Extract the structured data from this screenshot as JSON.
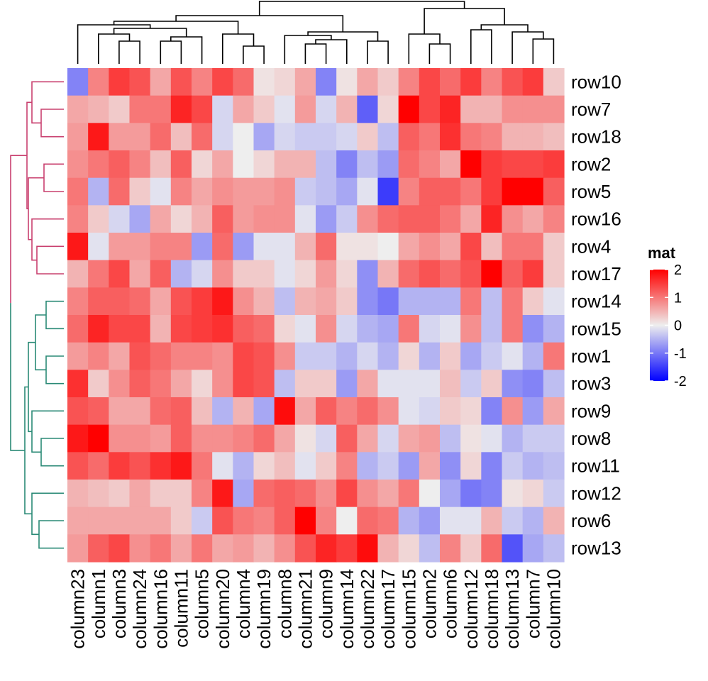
{
  "chart_data": {
    "type": "heatmap",
    "rows": [
      "row10",
      "row7",
      "row18",
      "row2",
      "row5",
      "row16",
      "row4",
      "row17",
      "row14",
      "row15",
      "row1",
      "row3",
      "row9",
      "row8",
      "row11",
      "row12",
      "row6",
      "row13"
    ],
    "columns": [
      "column23",
      "column1",
      "column3",
      "column24",
      "column16",
      "column11",
      "column5",
      "column20",
      "column4",
      "column19",
      "column8",
      "column21",
      "column9",
      "column14",
      "column22",
      "column17",
      "column15",
      "column2",
      "column6",
      "column12",
      "column18",
      "column13",
      "column7",
      "column10"
    ],
    "values": [
      [
        -0.9,
        0.9,
        1.5,
        1.3,
        0.6,
        1.3,
        0.9,
        1.4,
        1.1,
        0.1,
        0.2,
        0.6,
        -0.9,
        0.1,
        0.6,
        0.3,
        0.9,
        1.4,
        1.1,
        1.5,
        0.9,
        1.3,
        1.5,
        0.3
      ],
      [
        0.6,
        0.5,
        0.3,
        1.0,
        1.0,
        1.7,
        1.4,
        -0.2,
        0.6,
        0.3,
        -0.1,
        0.7,
        -0.2,
        0.5,
        -1.2,
        0.2,
        2.0,
        1.4,
        1.7,
        0.5,
        0.5,
        0.8,
        0.8,
        0.8
      ],
      [
        0.7,
        1.8,
        0.7,
        0.7,
        1.1,
        0.4,
        1.1,
        -0.2,
        0.0,
        -0.6,
        -0.2,
        -0.3,
        -0.3,
        -0.2,
        0.3,
        -0.4,
        1.2,
        1.0,
        1.6,
        1.0,
        0.9,
        0.5,
        0.5,
        0.4
      ],
      [
        0.8,
        1.0,
        1.2,
        0.9,
        0.4,
        1.2,
        0.2,
        0.6,
        0.0,
        0.2,
        0.5,
        0.5,
        -0.4,
        -0.9,
        -0.4,
        -0.7,
        1.1,
        0.9,
        0.6,
        2.1,
        1.5,
        1.4,
        1.4,
        1.5
      ],
      [
        1.0,
        -0.5,
        1.1,
        0.3,
        -0.1,
        0.9,
        0.6,
        0.8,
        0.7,
        0.7,
        0.8,
        -0.3,
        -0.4,
        -0.6,
        -0.1,
        -1.5,
        0.9,
        1.2,
        1.2,
        1.0,
        1.5,
        2.2,
        2.2,
        1.2
      ],
      [
        0.9,
        0.3,
        -0.2,
        -0.6,
        0.6,
        0.2,
        0.5,
        1.2,
        0.7,
        0.8,
        0.8,
        -0.1,
        -0.7,
        -0.3,
        0.8,
        1.1,
        1.2,
        1.2,
        1.0,
        0.6,
        1.7,
        0.8,
        0.6,
        0.9
      ],
      [
        1.8,
        -0.1,
        0.7,
        0.7,
        0.9,
        0.9,
        -0.7,
        1.1,
        -0.7,
        -0.1,
        -0.1,
        0.5,
        1.1,
        0.1,
        0.1,
        0.0,
        0.6,
        0.8,
        0.6,
        1.4,
        0.4,
        1.0,
        1.0,
        0.3
      ],
      [
        0.5,
        1.0,
        1.4,
        0.6,
        1.2,
        -0.5,
        -0.2,
        0.8,
        0.3,
        0.3,
        -0.1,
        0.2,
        0.7,
        0.2,
        -0.8,
        0.5,
        1.1,
        1.3,
        1.1,
        1.3,
        2.2,
        1.2,
        1.5,
        0.3
      ],
      [
        0.9,
        1.2,
        1.2,
        1.1,
        0.6,
        1.3,
        1.5,
        1.8,
        0.8,
        0.5,
        -0.4,
        0.5,
        0.6,
        0.3,
        -0.8,
        -1.0,
        -0.5,
        -0.5,
        -0.5,
        1.0,
        -0.4,
        1.0,
        0.3,
        -0.1
      ],
      [
        1.1,
        1.7,
        1.4,
        1.4,
        0.5,
        1.4,
        1.5,
        1.6,
        1.2,
        1.1,
        0.2,
        -0.1,
        0.8,
        -0.2,
        -0.5,
        -0.6,
        1.0,
        -0.2,
        -0.1,
        0.8,
        -0.4,
        1.0,
        -0.8,
        -0.5
      ],
      [
        0.7,
        0.9,
        0.6,
        1.3,
        1.1,
        0.9,
        0.9,
        0.8,
        1.4,
        1.3,
        0.8,
        -0.3,
        -0.3,
        -0.5,
        -0.2,
        -0.5,
        0.2,
        -0.5,
        0.3,
        -0.6,
        -0.3,
        -0.1,
        -0.5,
        1.0
      ],
      [
        1.6,
        0.3,
        0.8,
        1.2,
        1.0,
        0.6,
        0.2,
        0.8,
        1.4,
        1.3,
        -0.4,
        0.3,
        0.3,
        -0.7,
        0.6,
        -0.1,
        -0.1,
        -0.1,
        0.4,
        -0.3,
        0.3,
        -0.8,
        -0.9,
        -0.4
      ],
      [
        1.3,
        1.2,
        0.6,
        0.6,
        1.1,
        1.2,
        0.4,
        -0.5,
        0.5,
        -0.6,
        1.9,
        0.6,
        1.2,
        0.9,
        1.1,
        0.8,
        -0.1,
        -0.2,
        0.3,
        0.2,
        -0.9,
        0.8,
        -0.7,
        0.6
      ],
      [
        1.8,
        2.1,
        0.8,
        0.8,
        0.7,
        1.2,
        0.8,
        0.8,
        0.9,
        1.1,
        0.6,
        0.1,
        -0.2,
        1.2,
        0.6,
        -0.2,
        0.6,
        0.7,
        -0.4,
        0.1,
        -0.1,
        -0.5,
        -0.3,
        -0.3
      ],
      [
        1.3,
        1.1,
        1.5,
        1.3,
        1.6,
        1.8,
        1.0,
        -0.1,
        -0.5,
        0.2,
        0.4,
        -0.1,
        0.3,
        0.9,
        -0.5,
        -0.3,
        -0.7,
        0.6,
        -0.8,
        0.2,
        -0.9,
        -0.3,
        -0.5,
        -0.4
      ],
      [
        0.5,
        0.4,
        0.3,
        0.6,
        0.3,
        0.3,
        0.9,
        1.8,
        -0.6,
        1.1,
        1.2,
        1.1,
        0.8,
        1.4,
        0.8,
        0.6,
        1.0,
        0.0,
        -0.6,
        -1.0,
        -0.9,
        0.1,
        0.2,
        -0.3
      ],
      [
        0.6,
        0.6,
        0.6,
        0.6,
        0.6,
        0.3,
        -0.3,
        1.3,
        1.0,
        0.9,
        1.2,
        2.0,
        0.9,
        0.0,
        1.1,
        1.0,
        -0.5,
        -0.7,
        -0.1,
        -0.1,
        0.5,
        -0.3,
        -0.5,
        0.5
      ],
      [
        0.7,
        1.2,
        1.4,
        0.8,
        1.0,
        0.6,
        1.0,
        0.6,
        0.7,
        0.5,
        0.8,
        1.3,
        1.7,
        1.5,
        1.9,
        0.5,
        0.2,
        -0.4,
        0.9,
        0.3,
        1.1,
        -1.3,
        -0.6,
        -0.4
      ]
    ],
    "row_clusters": [
      {
        "color": "#c9406f",
        "rows": [
          "row10",
          "row7",
          "row18",
          "row2",
          "row5",
          "row16",
          "row4",
          "row17"
        ]
      },
      {
        "color": "#2a8a76",
        "rows": [
          "row14",
          "row15",
          "row1",
          "row3",
          "row9",
          "row8",
          "row11",
          "row12",
          "row6",
          "row13"
        ]
      }
    ],
    "colorscale": {
      "stops": [
        -2,
        0,
        2
      ],
      "colors": [
        "#0000ff",
        "#eeeeee",
        "#ff0000"
      ]
    },
    "legend": {
      "title": "mat",
      "ticks": [
        "2",
        "1",
        "0",
        "-1",
        "-2"
      ],
      "tick_values": [
        2,
        1,
        0,
        -1,
        -2
      ],
      "placement": "right"
    }
  }
}
